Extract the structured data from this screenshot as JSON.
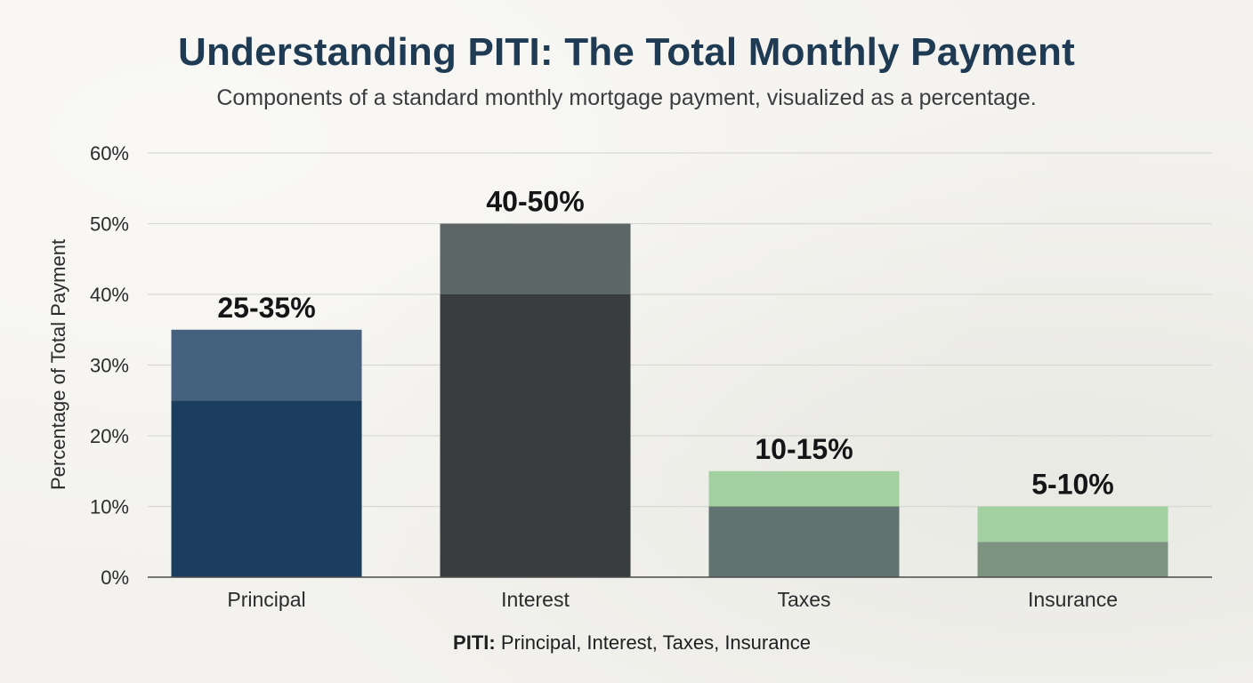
{
  "header": {
    "title": "Understanding PITI: The Total Monthly Payment",
    "subtitle": "Components of a standard monthly mortgage payment, visualized as a percentage."
  },
  "footnote": {
    "bold": "PITI:",
    "text": " Principal, Interest, Taxes, Insurance"
  },
  "colors": {
    "principal_base": "#1b3d5f",
    "principal_range": "#44627f",
    "interest_base": "#3a3d40",
    "interest_range": "#5c6667",
    "taxes_base": "#617370",
    "taxes_range": "#a2d0a0",
    "insurance_base": "#7d9580",
    "insurance_range": "#a2d0a0",
    "gridline": "#d9d9d4",
    "axis": "#4a4a4a"
  },
  "chart_data": {
    "type": "bar",
    "stacked_range": true,
    "categories": [
      "Principal",
      "Interest",
      "Taxes",
      "Insurance"
    ],
    "ranges": [
      {
        "low": 25,
        "high": 35,
        "label": "25-35%"
      },
      {
        "low": 40,
        "high": 50,
        "label": "40-50%"
      },
      {
        "low": 10,
        "high": 15,
        "label": "10-15%"
      },
      {
        "low": 5,
        "high": 10,
        "label": "5-10%"
      }
    ],
    "ylabel": "Percentage of Total Payment",
    "xlabel": "",
    "ylim": [
      0,
      60
    ],
    "yticks": [
      0,
      10,
      20,
      30,
      40,
      50,
      60
    ],
    "ytick_labels": [
      "0%",
      "10%",
      "20%",
      "30%",
      "40%",
      "50%",
      "60%"
    ],
    "grid": true,
    "legend": "none"
  }
}
